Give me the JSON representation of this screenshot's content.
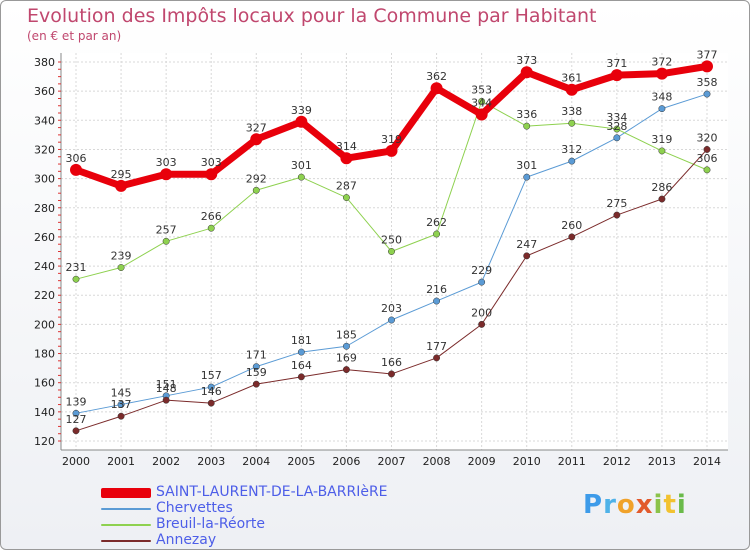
{
  "chart_data": {
    "type": "line",
    "title": "Evolution des Impôts locaux pour la Commune par Habitant",
    "subtitle": "(en € et par an)",
    "xlabel": "",
    "ylabel": "",
    "categories": [
      "2000",
      "2001",
      "2002",
      "2003",
      "2004",
      "2005",
      "2006",
      "2007",
      "2008",
      "2009",
      "2010",
      "2011",
      "2012",
      "2013",
      "2014"
    ],
    "ylim": [
      120,
      380
    ],
    "yticks": [
      120,
      140,
      160,
      180,
      200,
      220,
      240,
      260,
      280,
      300,
      320,
      340,
      360,
      380
    ],
    "grid": true,
    "legend_position": "bottom-left",
    "series": [
      {
        "name": "SAINT-LAURENT-DE-LA-BARRIèRE",
        "color": "#e8000b",
        "emphasis": true,
        "values": [
          306,
          295,
          303,
          303,
          327,
          339,
          314,
          319,
          362,
          344,
          373,
          361,
          371,
          372,
          377
        ]
      },
      {
        "name": "Chervettes",
        "color": "#5b9bd5",
        "emphasis": false,
        "values": [
          139,
          145,
          151,
          157,
          171,
          181,
          185,
          203,
          216,
          229,
          301,
          312,
          328,
          348,
          358
        ]
      },
      {
        "name": "Breuil-la-Réorte",
        "color": "#8ed14f",
        "emphasis": false,
        "values": [
          231,
          239,
          257,
          266,
          292,
          301,
          287,
          250,
          262,
          353,
          336,
          338,
          334,
          319,
          306
        ]
      },
      {
        "name": "Annezay",
        "color": "#7b2b2b",
        "emphasis": false,
        "values": [
          127,
          137,
          148,
          146,
          159,
          164,
          169,
          166,
          177,
          200,
          247,
          260,
          275,
          286,
          320
        ]
      }
    ]
  },
  "logo": {
    "text": "Proxiti"
  }
}
